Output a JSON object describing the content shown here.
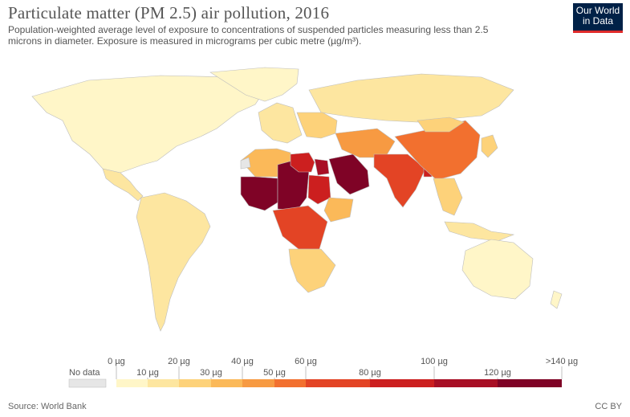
{
  "header": {
    "title": "Particulate matter (PM 2.5) air pollution, 2016",
    "subtitle": "Population-weighted average level of exposure to concentrations of suspended particles measuring less than 2.5 microns in diameter. Exposure is measured in micrograms per cubic metre (µg/m³).",
    "logo_line1": "Our World",
    "logo_line2": "in Data"
  },
  "legend": {
    "no_data_label": "No data",
    "no_data_color": "#e6e6e6",
    "bins": [
      {
        "label": "0 µg",
        "color": "#fff6c8"
      },
      {
        "label": "10 µg",
        "color": "#fde6a0"
      },
      {
        "label": "20 µg",
        "color": "#fdd27a"
      },
      {
        "label": "30 µg",
        "color": "#fbb959"
      },
      {
        "label": "40 µg",
        "color": "#f79a42"
      },
      {
        "label": "50 µg",
        "color": "#f2702f"
      },
      {
        "label": "60 µg",
        "color": "#e34425"
      },
      {
        "label": "80 µg",
        "color": "#cc1f1f"
      },
      {
        "label": "100 µg",
        "color": "#a80f25"
      },
      {
        "label": "120 µg",
        "color": "#7f0326"
      },
      {
        "label": ">140 µg",
        "color": null
      }
    ]
  },
  "regions": [
    {
      "name": "North America",
      "color": "#fff6c8"
    },
    {
      "name": "Greenland",
      "color": "#fff6c8"
    },
    {
      "name": "Central America",
      "color": "#fde6a0"
    },
    {
      "name": "South America",
      "color": "#fde6a0"
    },
    {
      "name": "Western Europe",
      "color": "#fde6a0"
    },
    {
      "name": "Russia",
      "color": "#fde6a0"
    },
    {
      "name": "Eastern Europe",
      "color": "#fdd27a"
    },
    {
      "name": "Mauritania / Algeria",
      "color": "#fbb959"
    },
    {
      "name": "Sahel West Africa",
      "color": "#7f0326"
    },
    {
      "name": "Chad / Niger",
      "color": "#7f0326"
    },
    {
      "name": "Libya",
      "color": "#cc1f1f"
    },
    {
      "name": "Egypt",
      "color": "#a80f25"
    },
    {
      "name": "Arabian Peninsula",
      "color": "#7f0326"
    },
    {
      "name": "Sudan",
      "color": "#cc1f1f"
    },
    {
      "name": "Horn of Africa",
      "color": "#fbb959"
    },
    {
      "name": "Central Africa",
      "color": "#e34425"
    },
    {
      "name": "Southern Africa",
      "color": "#fdd27a"
    },
    {
      "name": "Iran / Central Asia",
      "color": "#f79a42"
    },
    {
      "name": "Pakistan / India",
      "color": "#e34425"
    },
    {
      "name": "Bangladesh",
      "color": "#cc1f1f"
    },
    {
      "name": "China",
      "color": "#f2702f"
    },
    {
      "name": "Mongolia",
      "color": "#fdd27a"
    },
    {
      "name": "Southeast Asia",
      "color": "#fdd27a"
    },
    {
      "name": "Japan / Korea",
      "color": "#fdd27a"
    },
    {
      "name": "Indonesia",
      "color": "#fde6a0"
    },
    {
      "name": "Australia",
      "color": "#fff6c8"
    },
    {
      "name": "New Zealand",
      "color": "#fff6c8"
    },
    {
      "name": "Western Sahara",
      "color": "#e6e6e6"
    }
  ],
  "footer": {
    "source": "Source: World Bank",
    "license": "CC BY"
  }
}
